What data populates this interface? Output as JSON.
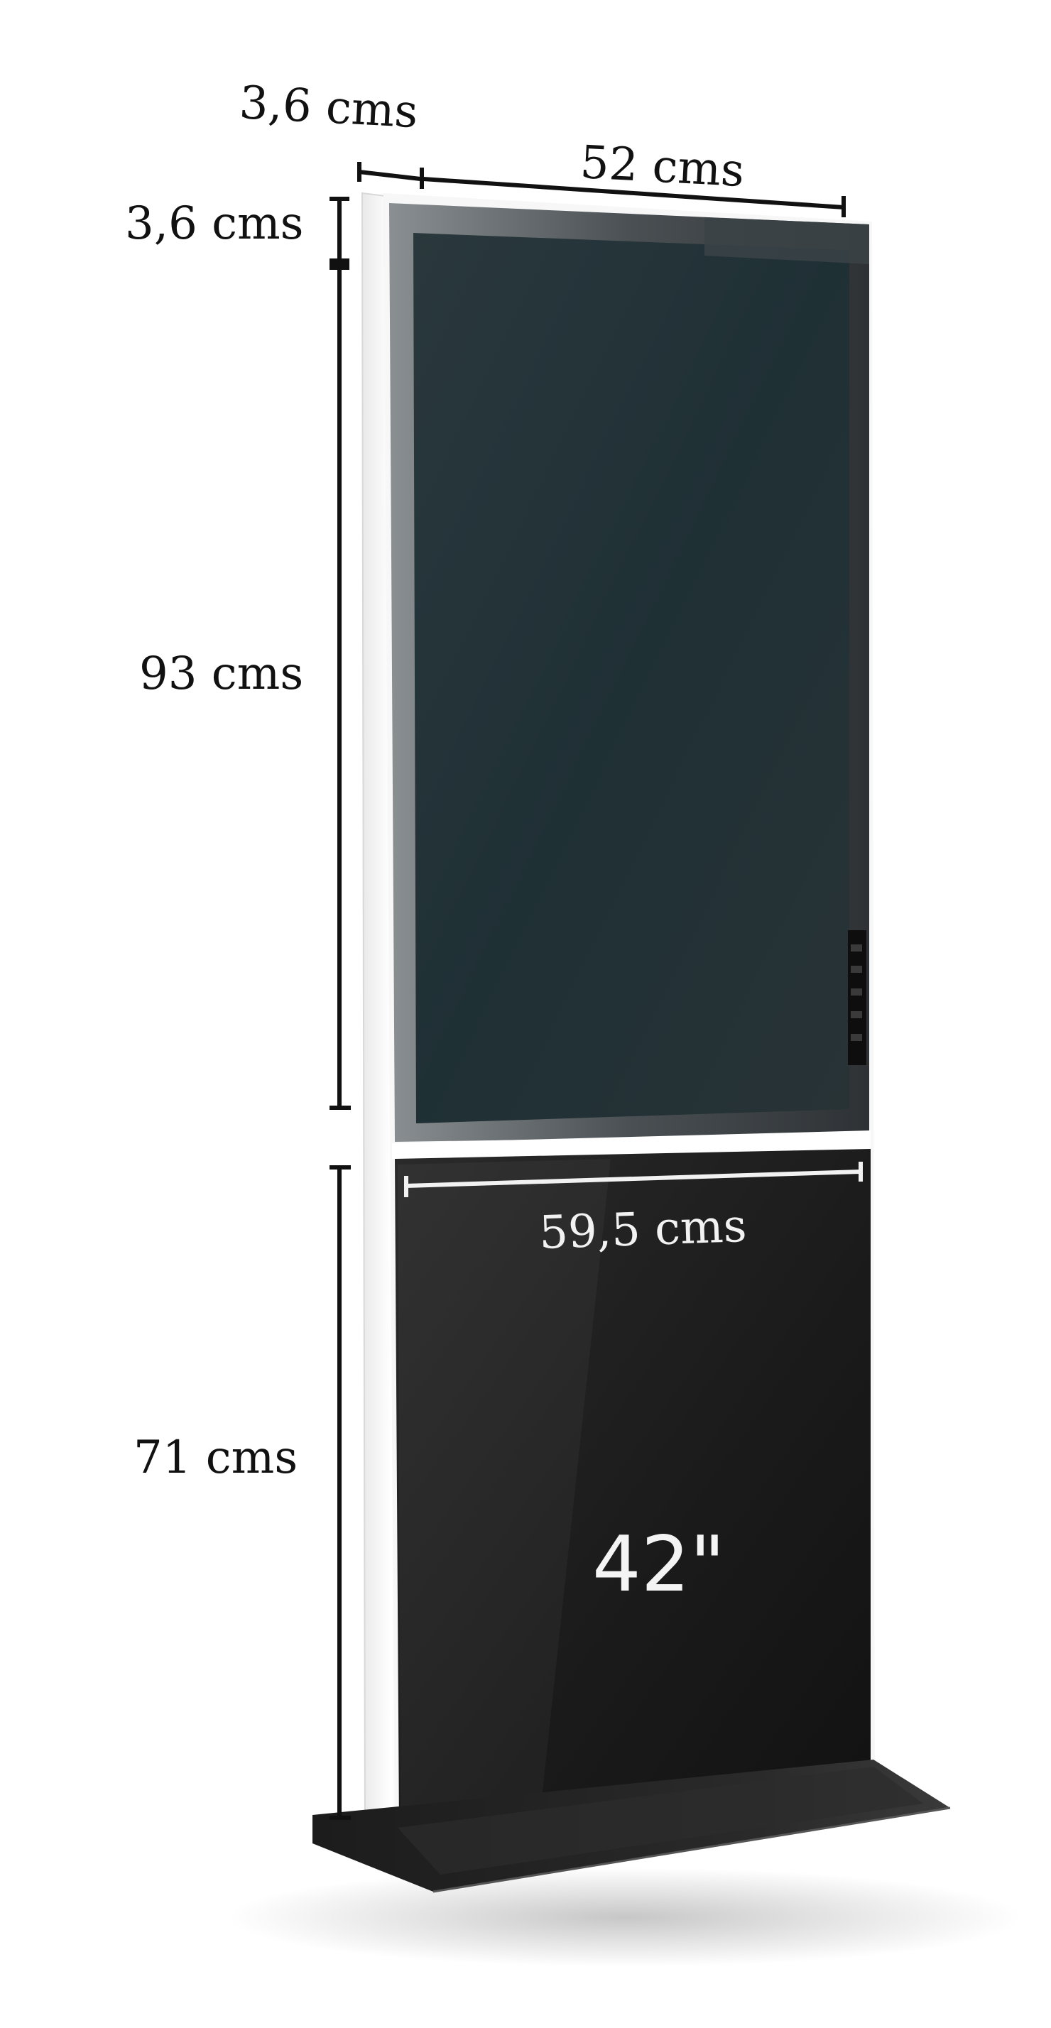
{
  "diagram": {
    "dimensions": {
      "depth_top": "3,6 cms",
      "width_top": "52 cms",
      "bezel_top": "3,6 cms",
      "screen_height": "93 cms",
      "width_lower": "59,5 cms",
      "lower_height": "71 cms"
    },
    "screen_size": "42\""
  },
  "colors": {
    "screen": "#233238",
    "body": "#1b1b1b",
    "frame": "#f4f4f4",
    "dimension_line": "#111111"
  }
}
